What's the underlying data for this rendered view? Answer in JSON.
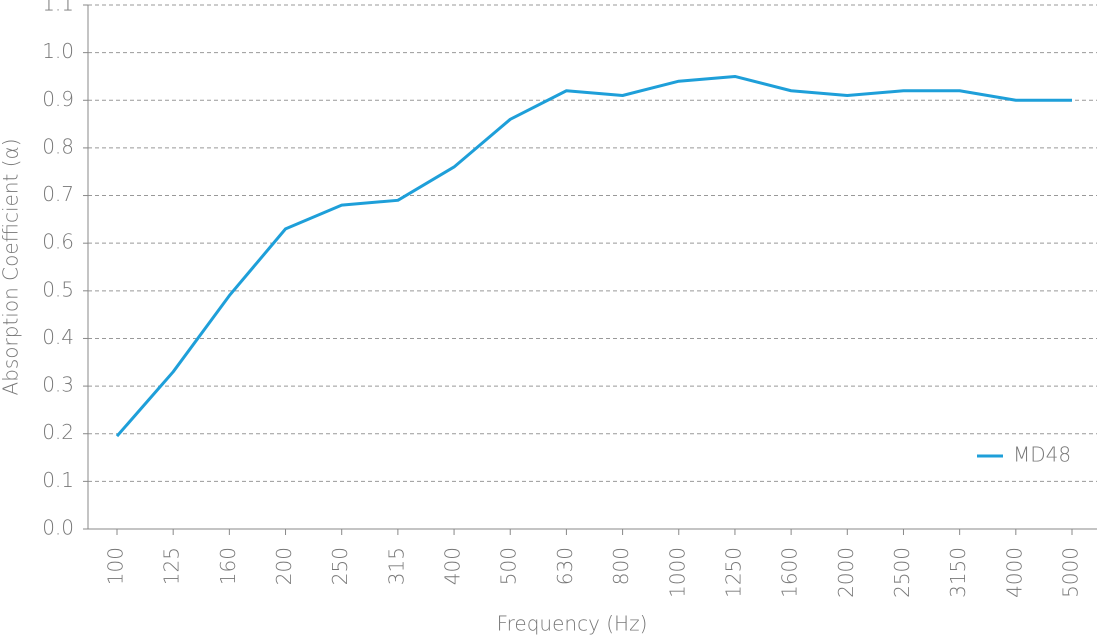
{
  "chart_data": {
    "type": "line",
    "x_label": "Frequency (Hz)",
    "y_label": "Absorption Coefficient (α)",
    "categories": [
      "100",
      "125",
      "160",
      "200",
      "250",
      "315",
      "400",
      "500",
      "630",
      "800",
      "1000",
      "1250",
      "1600",
      "2000",
      "2500",
      "3150",
      "4000",
      "5000"
    ],
    "series": [
      {
        "name": "MD48",
        "color": "#1e9fd9",
        "values": [
          0.195,
          0.33,
          0.49,
          0.63,
          0.68,
          0.69,
          0.76,
          0.86,
          0.92,
          0.91,
          0.94,
          0.95,
          0.92,
          0.91,
          0.92,
          0.92,
          0.9,
          0.9
        ]
      }
    ],
    "ylim": [
      0,
      1.1
    ],
    "yticks": [
      {
        "value": 0,
        "label": "0.0"
      },
      0.1,
      0.2,
      0.3,
      0.4,
      0.5,
      0.6,
      0.7,
      0.8,
      0.9,
      {
        "value": 1,
        "label": "1.0"
      },
      1.1
    ],
    "grid": true,
    "legend": "lower right"
  }
}
